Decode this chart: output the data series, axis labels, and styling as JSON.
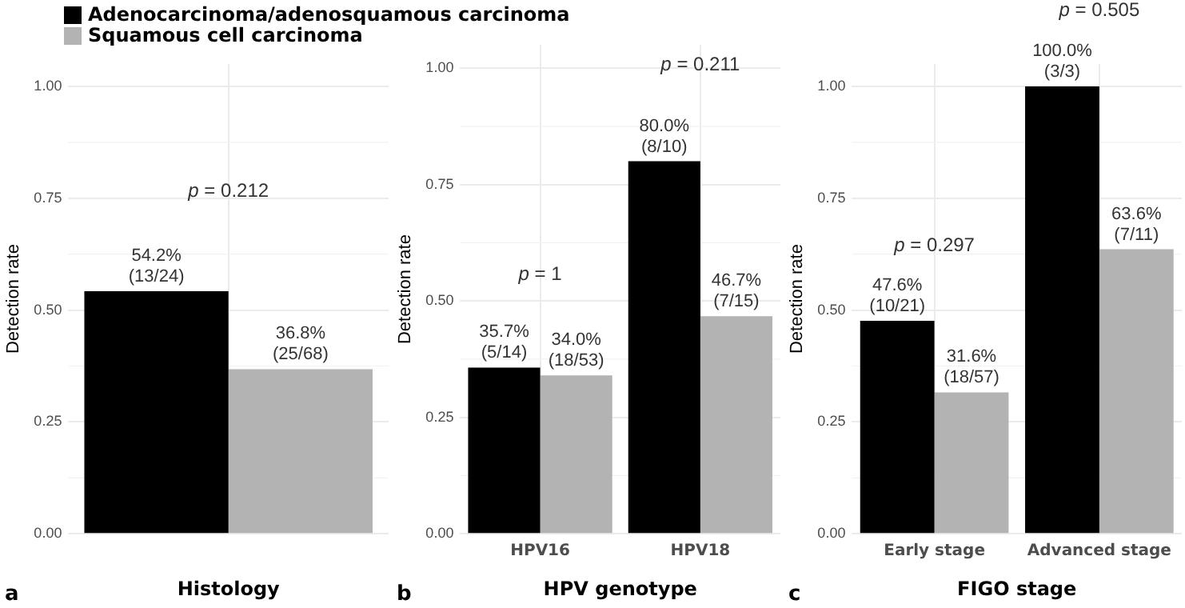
{
  "chart_data": [
    {
      "type": "bar",
      "categories": [
        null
      ],
      "xlabel": "Histology",
      "ylabel": "Detection rate",
      "ylim": [
        0,
        1.05
      ],
      "yticks": [
        {
          "value": 0,
          "label": "0.00"
        },
        {
          "value": 0.25,
          "label": "0.25"
        },
        {
          "value": 0.5,
          "label": "0.50"
        },
        {
          "value": 0.75,
          "label": "0.75"
        },
        {
          "value": 1,
          "label": "1.00"
        }
      ],
      "grid": true,
      "legend": "top",
      "series": [
        {
          "name": "Adenocarcinoma/adenosquamous carcinoma",
          "color": "#000000",
          "values": [
            0.542
          ],
          "value_labels": [
            "54.2%\n(13/24)"
          ]
        },
        {
          "name": "Squamous cell carcinoma",
          "color": "#b3b3b3",
          "values": [
            0.368
          ],
          "value_labels": [
            "36.8%\n(25/68)"
          ]
        }
      ],
      "annotations": [
        "p = 0.212",
        "a"
      ]
    },
    {
      "type": "bar",
      "categories": [
        "HPV16",
        "HPV18"
      ],
      "xlabel": "HPV genotype",
      "ylabel": "Detection rate",
      "ylim": [
        0,
        1.05
      ],
      "yticks": [
        {
          "value": 0,
          "label": "0.00"
        },
        {
          "value": 0.25,
          "label": "0.25"
        },
        {
          "value": 0.5,
          "label": "0.50"
        },
        {
          "value": 0.75,
          "label": "0.75"
        },
        {
          "value": 1,
          "label": "1.00"
        }
      ],
      "grid": true,
      "series": [
        {
          "color": "#000000",
          "values": [
            0.357,
            0.8
          ],
          "value_labels": [
            "35.7%\n(5/14)",
            "80.0%\n(8/10)"
          ]
        },
        {
          "color": "#b3b3b3",
          "values": [
            0.34,
            0.467
          ],
          "value_labels": [
            "34.0%\n(18/53)",
            "46.7%\n(7/15)"
          ]
        }
      ],
      "annotations": [
        "p = 1",
        "p = 0.211",
        "b"
      ]
    },
    {
      "type": "bar",
      "categories": [
        "Early stage",
        "Advanced stage"
      ],
      "xlabel": "FIGO stage",
      "ylabel": "Detection rate",
      "ylim": [
        0,
        1.05
      ],
      "yticks": [
        {
          "value": 0,
          "label": "0.00"
        },
        {
          "value": 0.25,
          "label": "0.25"
        },
        {
          "value": 0.5,
          "label": "0.50"
        },
        {
          "value": 0.75,
          "label": "0.75"
        },
        {
          "value": 1,
          "label": "1.00"
        }
      ],
      "grid": true,
      "series": [
        {
          "color": "#000000",
          "values": [
            0.476,
            1.0
          ],
          "value_labels": [
            "47.6%\n(10/21)",
            "100.0%\n(3/3)"
          ]
        },
        {
          "color": "#b3b3b3",
          "values": [
            0.316,
            0.636
          ],
          "value_labels": [
            "31.6%\n(18/57)",
            "63.6%\n(7/11)"
          ]
        }
      ],
      "annotations": [
        "p = 0.297",
        "p = 0.505",
        "c"
      ]
    }
  ]
}
